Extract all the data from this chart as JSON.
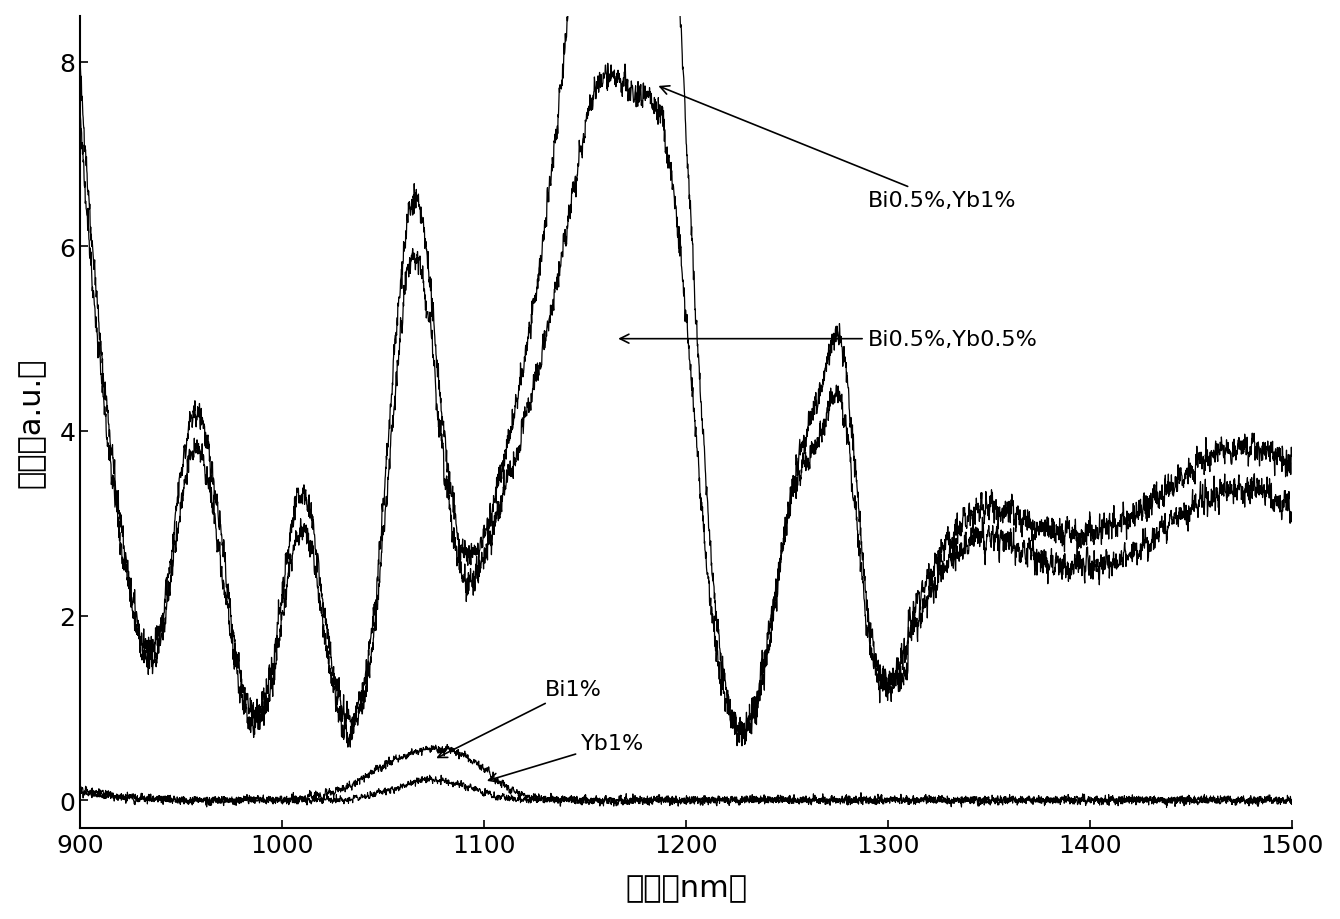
{
  "title": "",
  "xlabel": "波长（nm）",
  "ylabel": "强度（a.u.）",
  "xlim": [
    900,
    1500
  ],
  "ylim": [
    -0.3,
    8.5
  ],
  "yticks": [
    0,
    2,
    4,
    6,
    8
  ],
  "xticks": [
    900,
    1000,
    1100,
    1200,
    1300,
    1400,
    1500
  ],
  "background_color": "#ffffff",
  "xlabel_fontsize": 22,
  "ylabel_fontsize": 22,
  "tick_fontsize": 18,
  "annotation_fontsize": 16
}
